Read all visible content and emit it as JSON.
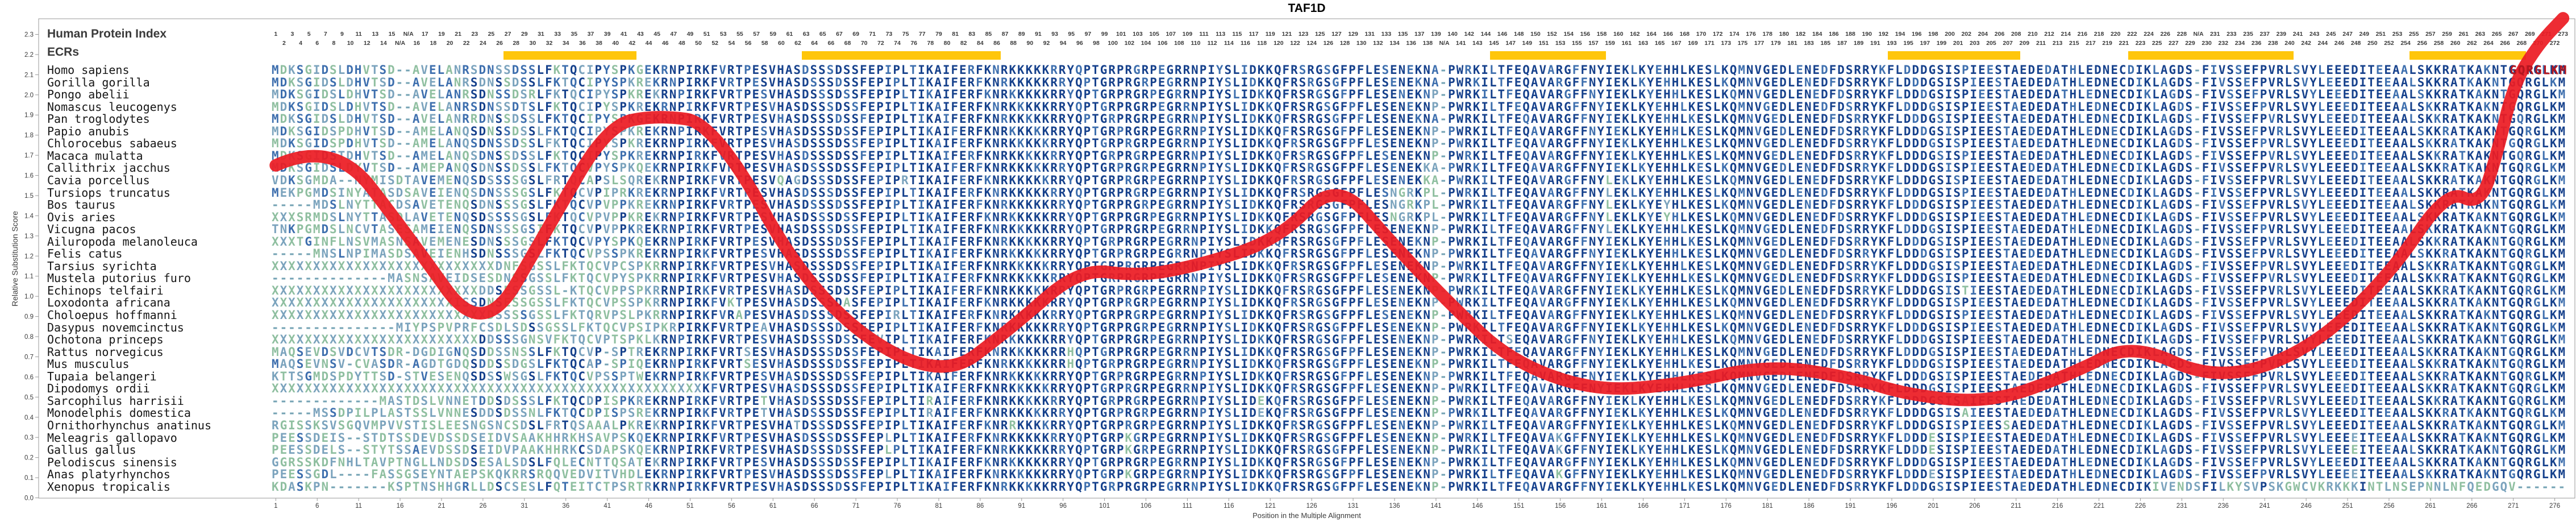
{
  "title": "TAF1D",
  "y_axis": {
    "label": "Relative Substitution Score",
    "ticks": [
      "0.0",
      "0.1",
      "0.2",
      "0.3",
      "0.4",
      "0.5",
      "0.6",
      "0.7",
      "0.8",
      "0.9",
      "1.0",
      "1.1",
      "1.2",
      "1.3",
      "1.4",
      "1.5",
      "1.6",
      "1.7",
      "1.8",
      "1.9",
      "2.0",
      "2.1",
      "2.2",
      "2.3"
    ]
  },
  "x_axis": {
    "label": "Position in the Multiple Alignment",
    "tick_start": 1,
    "tick_step": 5,
    "max": 277
  },
  "index_header": {
    "label": "Human Protein Index",
    "na": "N/A"
  },
  "ecr": {
    "label": "ECRs",
    "color": "#FFC60B",
    "segments": [
      [
        29,
        44
      ],
      [
        65,
        88
      ],
      [
        148,
        161
      ],
      [
        196,
        211
      ],
      [
        225,
        244
      ],
      [
        259,
        272
      ]
    ]
  },
  "alignment": {
    "length": 277,
    "human": "MDKSGIDSLDHVTSD--AVELANRSDNSSDSSLFKTQCIPYSPKGEKRNPIRKFVRTPESVHASDSSSDSSFEPIPLTIKAIFERFKNRKKKKKRRYQPTGRPRGRPEGRRNPIYSLIDKKQFRSRGSGFPFLESENEKNA-PWRKILTFEQAVARGFFNYIEKLKYEHHLKESLKQMNVGEDLENEDFDSRRYKFLDDDGSISPIEESTAEDEDATHLEDNECDIKLAGDS-FIVSSEFPVRLSVYLEEEDITEEAALSKKRATKAKNTGQRGLKM",
    "rows": [
      {
        "name": "Homo sapiens"
      },
      {
        "name": "Gorilla gorilla",
        "diffs": {
          "45": "R"
        }
      },
      {
        "name": "Pongo abelii",
        "diffs": {
          "32": "R",
          "45": "R",
          "141": "P"
        }
      },
      {
        "name": "Nomascus leucogenys",
        "diffs": {
          "31": "T",
          "45": "R",
          "141": "P"
        }
      },
      {
        "name": "Pan troglodytes",
        "diffs": {
          "25": "R"
        }
      },
      {
        "name": "Papio anubis",
        "diffs": {
          "9": "P",
          "19": "M",
          "24": "Q",
          "45": "R",
          "141": "P"
        }
      },
      {
        "name": "Chlorocebus sabaeus",
        "diffs": {
          "9": "P",
          "19": "M",
          "24": "Q",
          "45": "R",
          "141": "P"
        }
      },
      {
        "name": "Macaca mulatta",
        "diffs": {
          "9": "T",
          "19": "M",
          "24": "Q",
          "45": "R",
          "141": "P"
        }
      },
      {
        "name": "Callithrix jacchus",
        "diffs": {
          "11": "Y",
          "19": "M",
          "21": "P",
          "24": "Q",
          "39": "V",
          "45": "Q",
          "140": "K",
          "141": "A"
        }
      },
      {
        "name": "Cavia porcellus",
        "start": "VDKSGMDA--NYMISDTAVEMENQSDSSSSGSLFRTQCAPSLSQR",
        "diffs": {
          "62": "Q",
          "63": "A",
          "64": "G",
          "77": "R",
          "140": "K",
          "146": "K",
          "162": "L"
        }
      },
      {
        "name": "Tursiops truncatus",
        "start": "MEKPGMDSINYATASDSAVEIENQSDNSSSGSLFKTQCVPIPRKR",
        "diffs": {
          "136": "N",
          "137": "G",
          "138": "R",
          "139": "K",
          "140": "P",
          "141": "L",
          "162": "L"
        }
      },
      {
        "name": "Bos taurus",
        "start": "-----MDSLNYTTACDSAVETENQSDNSSSGSLFKTQCVPVPPKR",
        "diffs": {
          "136": "N",
          "137": "G",
          "138": "R",
          "139": "K",
          "140": "P",
          "141": "L",
          "162": "L",
          "169": "Y"
        }
      },
      {
        "name": "Ovis aries",
        "start": "XXXSRMDSLNYTTASDLAVETENQSDSSSSGSLFKTQCVPVPPKR",
        "diffs": {
          "136": "N",
          "137": "G",
          "138": "R",
          "139": "K",
          "140": "P",
          "141": "L",
          "162": "L",
          "169": "Y"
        }
      },
      {
        "name": "Vicugna pacos",
        "start": "TNKPGMDSLNCVTASESAMEIENQSDNSSSGSIFKTQCVPVPPKR",
        "diffs": {
          "141": "P",
          "162": "L"
        }
      },
      {
        "name": "Ailuropoda melanoleuca",
        "start": "XXXTGINFLNSVMASNSAVEMENESDNSSSGSLFKTQCVPYSPKQ",
        "diffs": {
          "141": "P"
        }
      },
      {
        "name": "Felis catus",
        "start": "-----MNSLNPIMASDSAVEIENHSDNSSSGSLFKTQCVPSSPKR",
        "diffs": {
          "141": "P"
        }
      },
      {
        "name": "Tarsius syrichta",
        "start": "XXXXXXXXXXXXXXXXXXXXXXXXXXXDNFSGSSLFKTQCVPCSPKR",
        "diffs": {
          "141": "P"
        }
      },
      {
        "name": "Mustela putorius furo",
        "start": "--------------MASNSAVEIDSESDNSSGSSLFKTQCVPYSPKR",
        "diffs": {
          "141": "P"
        }
      },
      {
        "name": "Echinops telfairi",
        "start": "XXXXXXXXXXXXXXXXXXXXXXXXXDDSESSGSSL-KTQCVPPSPKR",
        "diffs": {
          "141": "P",
          "205": "T"
        }
      },
      {
        "name": "Loxodonta africana",
        "start": "XXXXXXXXXXXXXXXXXXXXXXISSDNSESSGSSLFKTQCVPSSPKR",
        "diffs": {
          "56": "K",
          "70": "A",
          "141": "P"
        }
      },
      {
        "name": "Choloepus hoffmanni",
        "start": "XXXXXXXXXXXXXXXXXXXXXXXXXXDSSSSGSSLFKTQRVPSLPKR",
        "diffs": {
          "57": "A",
          "76": "R",
          "141": "P"
        }
      },
      {
        "name": "Dasypus novemcinctus",
        "start": "---------------MIYPSPVPRFCSDLSDSSGSSLFKTQCVPSIPKR",
        "diffs": {
          "60": "A",
          "141": "P"
        }
      },
      {
        "name": "Ochotona princeps",
        "start": "XXXXXXXXXXXXXXXXXXXXXXXXXDDSSSGNSVFKTQCVPTSPKL",
        "diffs": {
          "74": "V",
          "141": "P",
          "150": "S"
        }
      },
      {
        "name": "Rattus norvegicus",
        "start": "MAQSEVDSVDCVTSDR-DGDIGNQSDDSSNSSLFKTQCVP-SPTR",
        "diffs": {
          "58": "S",
          "97": "H",
          "141": "P"
        }
      },
      {
        "name": "Mus musculus",
        "start": "MAQSEVNSV-CVASDR-AGDTGDQSDDSSDGSLFKTQCAP-SPIQ",
        "diffs": {
          "58": "S",
          "97": "H",
          "141": "P"
        }
      },
      {
        "name": "Tupaia belangeri",
        "start": "KTTSGMDSPDYTTSD-STVESENQSDSSWSGSLFKTQCVPSSPTW",
        "diffs": {
          "141": "P"
        }
      },
      {
        "name": "Dipodomys ordii",
        "start": "XXXXXXXXXXXXXXXXXXXXXXXXXXXXXXXXXXXXXXXXXXXXXXXXXXXX",
        "diffs": {
          "141": "P"
        }
      },
      {
        "name": "Sarcophilus harrisii",
        "start": "-------------MASTDSLVNNETDDSDSSSLFKTQCDPISPKR",
        "diffs": {
          "60": "T",
          "80": "R",
          "120": "E",
          "141": "P",
          "205": "A"
        }
      },
      {
        "name": "Monodelphis domestica",
        "start": "-----MSSDPILPLASTSSLVNNESDDSDSSNLFKTQCDPISPSR",
        "diffs": {
          "60": "T",
          "80": "R",
          "120": "E",
          "141": "P",
          "205": "A"
        }
      },
      {
        "name": "Ornithorhynchus anatinus",
        "start": "RGISSKSVSGQVMPVVSTISLEESNGSNCSDSLFRTQSAAALPKR",
        "diffs": {
          "64": "T",
          "90": "R",
          "141": "P",
          "210": "S"
        }
      },
      {
        "name": "Meleagris gallopavo",
        "start": "PEESSDEIS--STDTSSDEVDSSDSEIDVSAAKHHRKHSAVPSKQ",
        "diffs": {
          "75": "L",
          "104": "K",
          "141": "P",
          "156": "K",
          "201": "E",
          "252": "E"
        }
      },
      {
        "name": "Gallus gallus",
        "start": "PEESSDELS--STYTSSAEVDSSDSEIDVPAAKHHRKCSDAPSKQ",
        "diffs": {
          "75": "L",
          "104": "K",
          "141": "P",
          "156": "K",
          "201": "E",
          "252": "E"
        }
      },
      {
        "name": "Pelodiscus sinensis",
        "start": "GGRSSKDFNHLTAVPTNGLLNDSDSESALSDSLFQLECNTTQSAT",
        "diffs": {
          "75": "I",
          "141": "P",
          "156": "R",
          "252": "D"
        }
      },
      {
        "name": "Anas platyrhynchos",
        "start": "PEESSGDL----FASSGSEYNTAEPSKQKRRSRQQVEDVITVHDL",
        "diffs": {
          "75": "L",
          "104": "K",
          "141": "P",
          "156": "K",
          "201": "E",
          "252": "E"
        }
      },
      {
        "name": "Xenopus tropicalis",
        "start": "KDASKPN-------KSPTNSHHGRLLDSCSESLFQTEITCTPSRTR",
        "diffs": {
          "75": "I",
          "104": "R",
          "141": "P"
        },
        "tail_start": 227,
        "tail": "KIVENDSFILKYSVPSKGWCVKRKKKINTLNSEPNNLNFQEDGQV------"
      }
    ]
  },
  "curve": {
    "color": "#EC1C24",
    "end_overlay": {
      "start_col": 271,
      "letters": "GQRGLKM"
    },
    "points": [
      [
        1,
        1.65
      ],
      [
        8,
        1.78
      ],
      [
        17,
        1.3
      ],
      [
        26,
        0.78
      ],
      [
        34,
        1.35
      ],
      [
        41,
        1.85
      ],
      [
        47,
        1.9
      ],
      [
        54,
        1.86
      ],
      [
        66,
        0.97
      ],
      [
        81,
        0.57
      ],
      [
        90,
        0.85
      ],
      [
        98,
        1.14
      ],
      [
        105,
        1.1
      ],
      [
        112,
        1.15
      ],
      [
        122,
        1.28
      ],
      [
        129,
        1.58
      ],
      [
        136,
        1.25
      ],
      [
        143,
        0.95
      ],
      [
        150,
        0.68
      ],
      [
        160,
        0.53
      ],
      [
        170,
        0.56
      ],
      [
        181,
        0.66
      ],
      [
        191,
        0.6
      ],
      [
        198,
        0.51
      ],
      [
        208,
        0.47
      ],
      [
        218,
        0.62
      ],
      [
        225,
        0.77
      ],
      [
        235,
        0.58
      ],
      [
        246,
        0.72
      ],
      [
        256,
        1.1
      ],
      [
        263,
        1.53
      ],
      [
        267,
        1.45
      ],
      [
        269,
        1.7
      ],
      [
        271,
        2.05
      ],
      [
        274,
        2.25
      ],
      [
        277,
        2.38
      ]
    ]
  },
  "colors": {
    "navy": "#16418C",
    "mid": "#3E6FAE",
    "steel": "#7BA3BD",
    "green": "#8FBFA0",
    "gap": "#74A3B4",
    "overlay_letter": "#B3161F",
    "border": "#999999",
    "tick_text": "#3c3c3c",
    "number": "#3b3b3b"
  },
  "chart_data": {
    "type": "line",
    "title": "TAF1D",
    "xlabel": "Position in the Multiple Alignment",
    "ylabel": "Relative Substitution Score",
    "xlim": [
      1,
      277
    ],
    "ylim": [
      0,
      2.4
    ],
    "grid": false,
    "legend": "none",
    "series": [
      {
        "name": "Relative Substitution Score",
        "x": [
          1,
          8,
          17,
          26,
          34,
          41,
          47,
          54,
          66,
          81,
          90,
          98,
          105,
          112,
          122,
          129,
          136,
          143,
          150,
          160,
          170,
          181,
          191,
          198,
          208,
          218,
          225,
          235,
          246,
          256,
          263,
          267,
          269,
          271,
          274,
          277
        ],
        "y": [
          1.65,
          1.78,
          1.3,
          0.78,
          1.35,
          1.85,
          1.9,
          1.86,
          0.97,
          0.57,
          0.85,
          1.14,
          1.1,
          1.15,
          1.28,
          1.58,
          1.25,
          0.95,
          0.68,
          0.53,
          0.56,
          0.66,
          0.6,
          0.51,
          0.47,
          0.62,
          0.77,
          0.58,
          0.72,
          1.1,
          1.53,
          1.45,
          1.7,
          2.05,
          2.25,
          2.38
        ]
      }
    ],
    "annotations": {
      "ecr_segments_alignment_positions": [
        [
          29,
          44
        ],
        [
          65,
          88
        ],
        [
          148,
          161
        ],
        [
          196,
          211
        ],
        [
          225,
          244
        ],
        [
          259,
          272
        ]
      ],
      "species_count": 35
    }
  }
}
